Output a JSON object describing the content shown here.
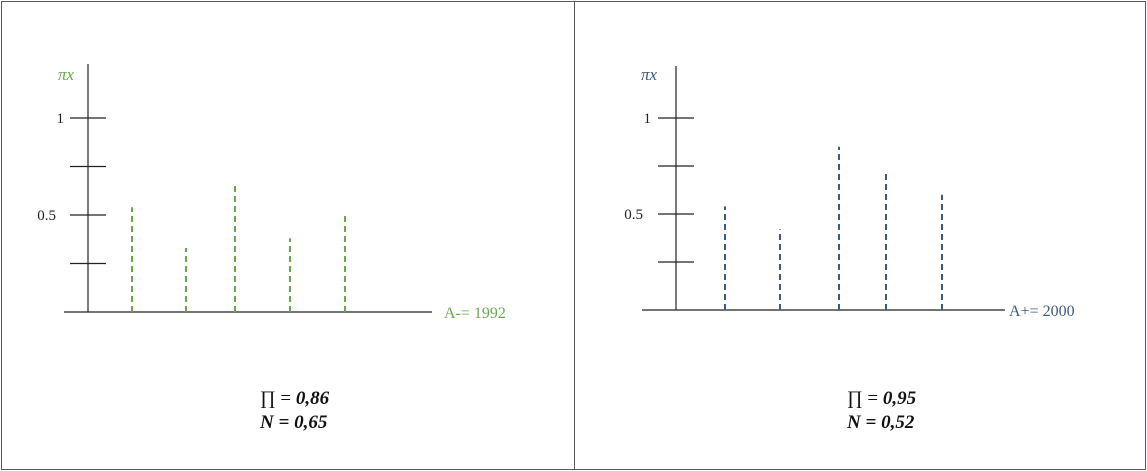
{
  "chart_data": [
    {
      "type": "bar",
      "style": "dashed-stems",
      "color": "#6aa84f",
      "ylabel": "πx",
      "xlabel": "A-= 1992",
      "ylim": [
        0,
        1
      ],
      "yticks": [
        0.25,
        0.5,
        0.75,
        1
      ],
      "ytick_labels": {
        "0.5": "0.5",
        "1": "1"
      },
      "values": [
        0.54,
        0.33,
        0.66,
        0.38,
        0.51
      ],
      "stats": {
        "pi_symbol": "∏ =",
        "pi_value": "0,86",
        "n_symbol": "N =",
        "n_value": "0,65"
      }
    },
    {
      "type": "bar",
      "style": "dashed-stems",
      "color": "#3d5a80",
      "ylabel": "πx",
      "xlabel": "A+= 2000",
      "ylim": [
        0,
        1
      ],
      "yticks": [
        0.25,
        0.5,
        0.75,
        1
      ],
      "ytick_labels": {
        "0.5": "0.5",
        "1": "1"
      },
      "values": [
        0.54,
        0.42,
        0.85,
        0.72,
        0.6
      ],
      "stats": {
        "pi_symbol": "∏ =",
        "pi_value": "0,95",
        "n_symbol": "N =",
        "n_value": "0,52"
      }
    }
  ]
}
